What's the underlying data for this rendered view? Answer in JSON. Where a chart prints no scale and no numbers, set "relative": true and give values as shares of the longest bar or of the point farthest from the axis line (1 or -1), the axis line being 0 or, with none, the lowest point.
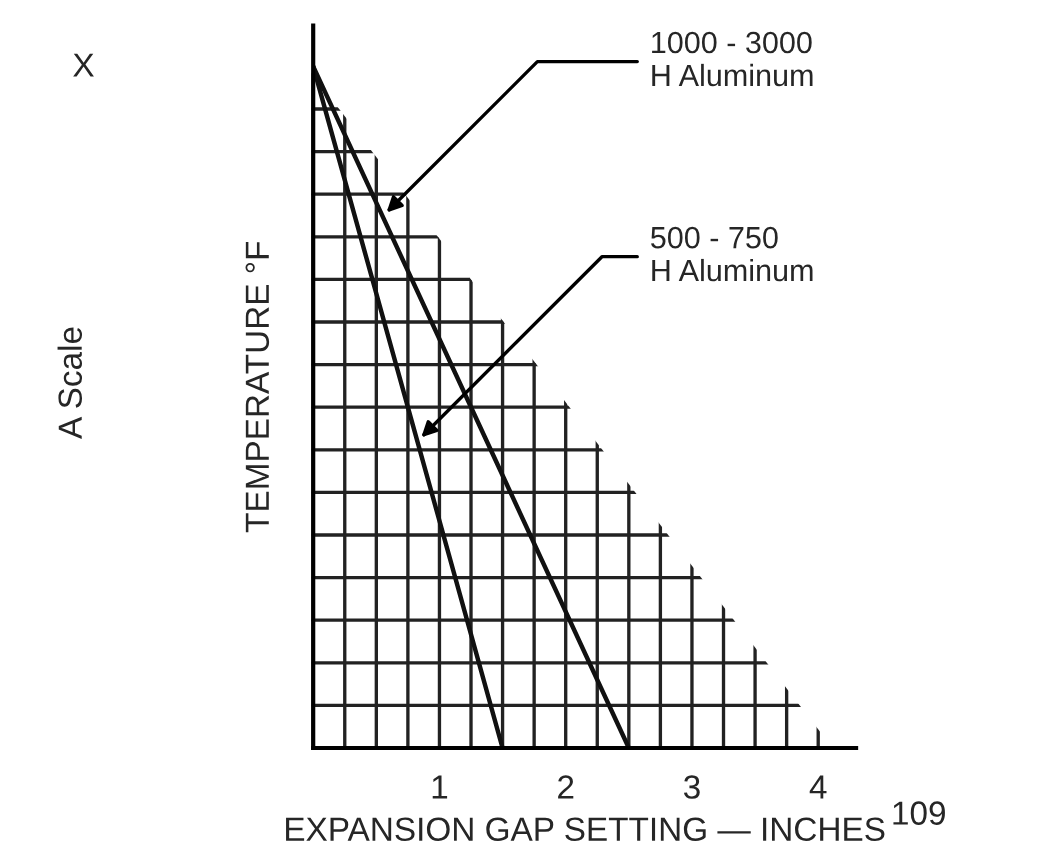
{
  "chart_data": {
    "type": "line",
    "relative": true,
    "xlabel": "EXPANSION GAP SETTING — INCHES",
    "ylabel": "TEMPERATURE °F",
    "xlim": [
      0,
      4.3
    ],
    "xticks": [
      {
        "value": 0,
        "label": null
      },
      {
        "value": 0.25,
        "label": null
      },
      {
        "value": 0.5,
        "label": null
      },
      {
        "value": 0.75,
        "label": null
      },
      1,
      {
        "value": 1.25,
        "label": null
      },
      {
        "value": 1.5,
        "label": null
      },
      {
        "value": 1.75,
        "label": null
      },
      2,
      {
        "value": 2.25,
        "label": null
      },
      {
        "value": 2.5,
        "label": null
      },
      {
        "value": 2.75,
        "label": null
      },
      3,
      {
        "value": 3.25,
        "label": null
      },
      {
        "value": 3.5,
        "label": null
      },
      {
        "value": 3.75,
        "label": null
      },
      4
    ],
    "grid": true,
    "legend": false,
    "marker": "none",
    "line_style": "solid",
    "series": [
      {
        "name": "1000 - 3000\nH Aluminum",
        "color": "#111111",
        "x": [
          0,
          2.5
        ],
        "values": [
          1,
          0
        ]
      },
      {
        "name": "500 - 750\nH Aluminum",
        "color": "#111111",
        "x": [
          0,
          1.5
        ],
        "values": [
          1,
          0
        ]
      }
    ],
    "annotations": [
      "X",
      "A Scale",
      "109"
    ]
  }
}
